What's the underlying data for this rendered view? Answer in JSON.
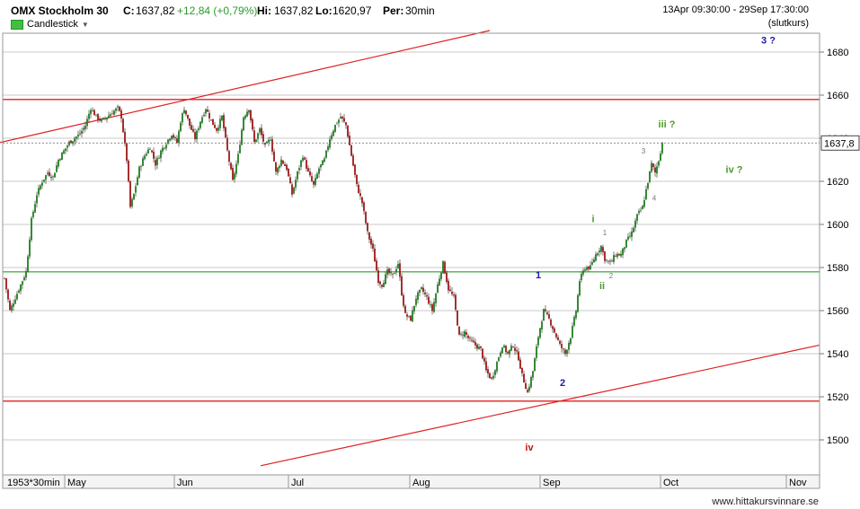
{
  "header": {
    "title": "OMX Stockholm 30",
    "close_label": "C:",
    "close_value": "1637,82",
    "change": "+12,84 (+0,79%)",
    "high_label": "Hi:",
    "high_value": "1637,82",
    "low_label": "Lo:",
    "low_value": "1620,97",
    "period_label": "Per:",
    "period_value": "30min",
    "date_range": "13Apr 09:30:00 - 29Sep 17:30:00",
    "closing_note": "(slutkurs)"
  },
  "legend": {
    "label": "Candlestick",
    "color": "#3fc13f"
  },
  "footer": {
    "source": "www.hittakursvinnare.se"
  },
  "chart_data": {
    "type": "candlestick",
    "period": "30min",
    "y_ticks": [
      "1680",
      "1660",
      "1640",
      "1620",
      "1600",
      "1580",
      "1560",
      "1540",
      "1520",
      "1500"
    ],
    "y_values": [
      1680,
      1660,
      1640,
      1620,
      1600,
      1580,
      1560,
      1540,
      1520,
      1500
    ],
    "ylim": [
      1482,
      1692
    ],
    "x_ticks": [
      "1953*30min",
      "May",
      "Jun",
      "Jul",
      "Aug",
      "Sep",
      "Oct",
      "Nov"
    ],
    "last_price_label": "1637,8",
    "last_price": 1637.8,
    "close_path": [
      [
        0,
        1575
      ],
      [
        6,
        1560
      ],
      [
        12,
        1566
      ],
      [
        18,
        1572
      ],
      [
        24,
        1578
      ],
      [
        30,
        1602
      ],
      [
        36,
        1614
      ],
      [
        42,
        1620
      ],
      [
        48,
        1624
      ],
      [
        54,
        1622
      ],
      [
        60,
        1630
      ],
      [
        66,
        1634
      ],
      [
        72,
        1638
      ],
      [
        78,
        1640
      ],
      [
        84,
        1642
      ],
      [
        90,
        1646
      ],
      [
        96,
        1654
      ],
      [
        102,
        1650
      ],
      [
        108,
        1648
      ],
      [
        114,
        1650
      ],
      [
        120,
        1652
      ],
      [
        126,
        1654
      ],
      [
        130,
        1650
      ],
      [
        136,
        1630
      ],
      [
        140,
        1608
      ],
      [
        144,
        1614
      ],
      [
        150,
        1626
      ],
      [
        156,
        1632
      ],
      [
        162,
        1636
      ],
      [
        168,
        1628
      ],
      [
        174,
        1634
      ],
      [
        180,
        1638
      ],
      [
        186,
        1642
      ],
      [
        192,
        1638
      ],
      [
        196,
        1648
      ],
      [
        200,
        1654
      ],
      [
        206,
        1646
      ],
      [
        212,
        1640
      ],
      [
        218,
        1648
      ],
      [
        224,
        1654
      ],
      [
        230,
        1648
      ],
      [
        236,
        1644
      ],
      [
        242,
        1650
      ],
      [
        248,
        1634
      ],
      [
        254,
        1620
      ],
      [
        260,
        1632
      ],
      [
        266,
        1650
      ],
      [
        272,
        1654
      ],
      [
        278,
        1638
      ],
      [
        284,
        1644
      ],
      [
        290,
        1636
      ],
      [
        296,
        1640
      ],
      [
        302,
        1624
      ],
      [
        308,
        1630
      ],
      [
        314,
        1626
      ],
      [
        320,
        1614
      ],
      [
        326,
        1624
      ],
      [
        332,
        1632
      ],
      [
        338,
        1624
      ],
      [
        344,
        1618
      ],
      [
        350,
        1626
      ],
      [
        356,
        1630
      ],
      [
        362,
        1640
      ],
      [
        368,
        1646
      ],
      [
        374,
        1650
      ],
      [
        380,
        1646
      ],
      [
        386,
        1632
      ],
      [
        392,
        1618
      ],
      [
        398,
        1610
      ],
      [
        404,
        1596
      ],
      [
        410,
        1588
      ],
      [
        416,
        1574
      ],
      [
        420,
        1572
      ],
      [
        426,
        1578
      ],
      [
        432,
        1576
      ],
      [
        438,
        1582
      ],
      [
        442,
        1568
      ],
      [
        446,
        1558
      ],
      [
        452,
        1556
      ],
      [
        458,
        1566
      ],
      [
        464,
        1570
      ],
      [
        470,
        1566
      ],
      [
        476,
        1560
      ],
      [
        482,
        1572
      ],
      [
        488,
        1582
      ],
      [
        494,
        1570
      ],
      [
        500,
        1566
      ],
      [
        506,
        1548
      ],
      [
        512,
        1550
      ],
      [
        518,
        1546
      ],
      [
        524,
        1544
      ],
      [
        530,
        1542
      ],
      [
        536,
        1532
      ],
      [
        542,
        1528
      ],
      [
        548,
        1536
      ],
      [
        554,
        1544
      ],
      [
        560,
        1540
      ],
      [
        566,
        1544
      ],
      [
        572,
        1538
      ],
      [
        576,
        1530
      ],
      [
        582,
        1522
      ],
      [
        588,
        1532
      ],
      [
        594,
        1548
      ],
      [
        600,
        1560
      ],
      [
        606,
        1556
      ],
      [
        612,
        1550
      ],
      [
        618,
        1544
      ],
      [
        624,
        1540
      ],
      [
        630,
        1548
      ],
      [
        636,
        1560
      ],
      [
        640,
        1574
      ],
      [
        646,
        1580
      ],
      [
        652,
        1580
      ],
      [
        658,
        1586
      ],
      [
        664,
        1590
      ],
      [
        668,
        1584
      ],
      [
        674,
        1582
      ],
      [
        680,
        1586
      ],
      [
        686,
        1586
      ],
      [
        692,
        1592
      ],
      [
        698,
        1596
      ],
      [
        704,
        1604
      ],
      [
        710,
        1608
      ],
      [
        716,
        1620
      ],
      [
        720,
        1628
      ],
      [
        724,
        1624
      ],
      [
        728,
        1630
      ],
      [
        732,
        1637.8
      ]
    ],
    "lines": [
      {
        "type": "trend",
        "color": "#e02020",
        "from": [
          0,
          1638
        ],
        "to": [
          545,
          1690
        ]
      },
      {
        "type": "horizontal",
        "color": "#e02020",
        "value": 1658
      },
      {
        "type": "horizontal",
        "color": "#4caf50",
        "value": 1578
      },
      {
        "type": "horizontal",
        "color": "#e02020",
        "value": 1518
      },
      {
        "type": "trend",
        "color": "#e02020",
        "from": [
          290,
          1488
        ],
        "to": [
          912,
          1544
        ]
      }
    ],
    "annotations": [
      {
        "text": "3 ?",
        "color": "#1a1aa6",
        "x": 855,
        "y": 1684,
        "size": "large"
      },
      {
        "text": "iii ?",
        "color": "#4a9a2a",
        "x": 742,
        "y": 1645,
        "size": "large"
      },
      {
        "text": "iv ?",
        "color": "#4a9a2a",
        "x": 817,
        "y": 1624,
        "size": "large"
      },
      {
        "text": "i",
        "color": "#4a9a2a",
        "x": 660,
        "y": 1601,
        "size": "large"
      },
      {
        "text": "ii",
        "color": "#4a9a2a",
        "x": 670,
        "y": 1570,
        "size": "large"
      },
      {
        "text": "1",
        "color": "#1a1aa6",
        "x": 599,
        "y": 1575,
        "size": "large"
      },
      {
        "text": "2",
        "color": "#1a1aa6",
        "x": 626,
        "y": 1525,
        "size": "large"
      },
      {
        "text": "iv",
        "color": "#cc1010",
        "x": 589,
        "y": 1495,
        "size": "large"
      },
      {
        "text": "1",
        "color": "#777777",
        "x": 673,
        "y": 1595,
        "size": "small"
      },
      {
        "text": "2",
        "color": "#777777",
        "x": 680,
        "y": 1575,
        "size": "small"
      },
      {
        "text": "3",
        "color": "#777777",
        "x": 716,
        "y": 1633,
        "size": "small"
      },
      {
        "text": "4",
        "color": "#777777",
        "x": 728,
        "y": 1611,
        "size": "small"
      }
    ]
  }
}
